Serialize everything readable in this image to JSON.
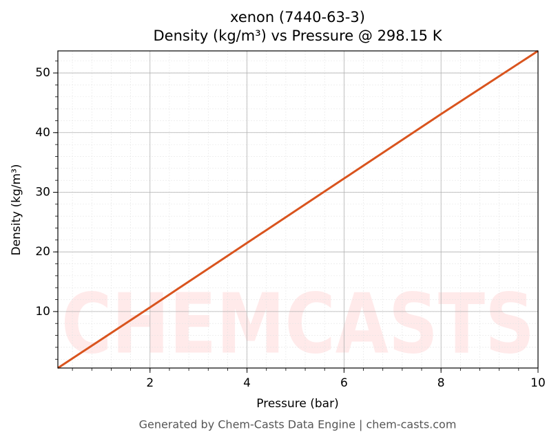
{
  "chart_data": {
    "type": "line",
    "title": "xenon (7440-63-3)",
    "subtitle": "Density (kg/m³) vs Pressure @ 298.15 K",
    "x_label": "Pressure (bar)",
    "y_label": "Density (kg/m³)",
    "footer": "Generated by Chem-Casts Data Engine | chem-casts.com",
    "watermark": "CHEMCASTS",
    "x": [
      0.1,
      2,
      4,
      6,
      8,
      10
    ],
    "series": [
      {
        "name": "Density",
        "color": "#d9541e",
        "values": [
          0.53,
          10.7,
          21.5,
          32.3,
          43.1,
          53.7
        ]
      }
    ],
    "xlim": [
      0.1,
      10
    ],
    "xticks": [
      2,
      4,
      6,
      8,
      10
    ],
    "ylim": [
      0.53,
      53.7
    ],
    "yticks": [
      10,
      20,
      30,
      40,
      50
    ],
    "grid": true
  }
}
